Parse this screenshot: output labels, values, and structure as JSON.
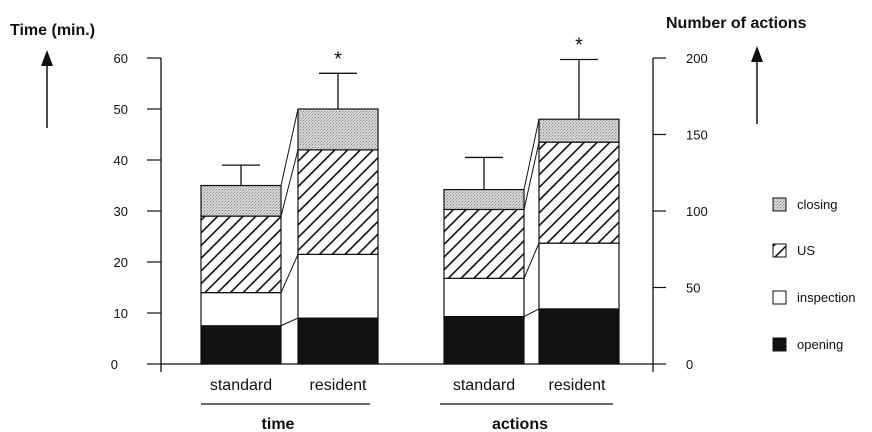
{
  "chart_data": {
    "type": "bar",
    "stacked": true,
    "left_axis": {
      "title": "Time (min.)",
      "range": [
        0,
        60
      ],
      "ticks": [
        "0",
        "10",
        "20",
        "30",
        "40",
        "50",
        "60"
      ]
    },
    "right_axis": {
      "title": "Number of actions",
      "range": [
        0,
        200
      ],
      "ticks": [
        "0",
        "50",
        "100",
        "150",
        "200"
      ]
    },
    "groups": [
      {
        "label": "time",
        "axis": "left",
        "categories": [
          "standard",
          "resident"
        ],
        "series": [
          {
            "name": "opening",
            "values": [
              7.5,
              9
            ]
          },
          {
            "name": "inspection",
            "values": [
              6.5,
              12.5
            ]
          },
          {
            "name": "US",
            "values": [
              15,
              20.5
            ]
          },
          {
            "name": "closing",
            "values": [
              6,
              8
            ]
          }
        ],
        "error_tops": [
          39,
          57
        ],
        "significance": [
          "",
          "*"
        ]
      },
      {
        "label": "actions",
        "axis": "right",
        "categories": [
          "standard",
          "resident"
        ],
        "series": [
          {
            "name": "opening",
            "values": [
              31,
              36
            ]
          },
          {
            "name": "inspection",
            "values": [
              25,
              43
            ]
          },
          {
            "name": "US",
            "values": [
              45,
              66
            ]
          },
          {
            "name": "closing",
            "values": [
              13,
              15
            ]
          }
        ],
        "error_tops": [
          135,
          199
        ],
        "significance": [
          "",
          "*"
        ]
      }
    ],
    "legend": {
      "placement": "right",
      "items": [
        {
          "name": "closing",
          "pattern": "dotted-gray"
        },
        {
          "name": "US",
          "pattern": "diagonal-hatch"
        },
        {
          "name": "inspection",
          "pattern": "white"
        },
        {
          "name": "opening",
          "pattern": "black"
        }
      ]
    }
  }
}
